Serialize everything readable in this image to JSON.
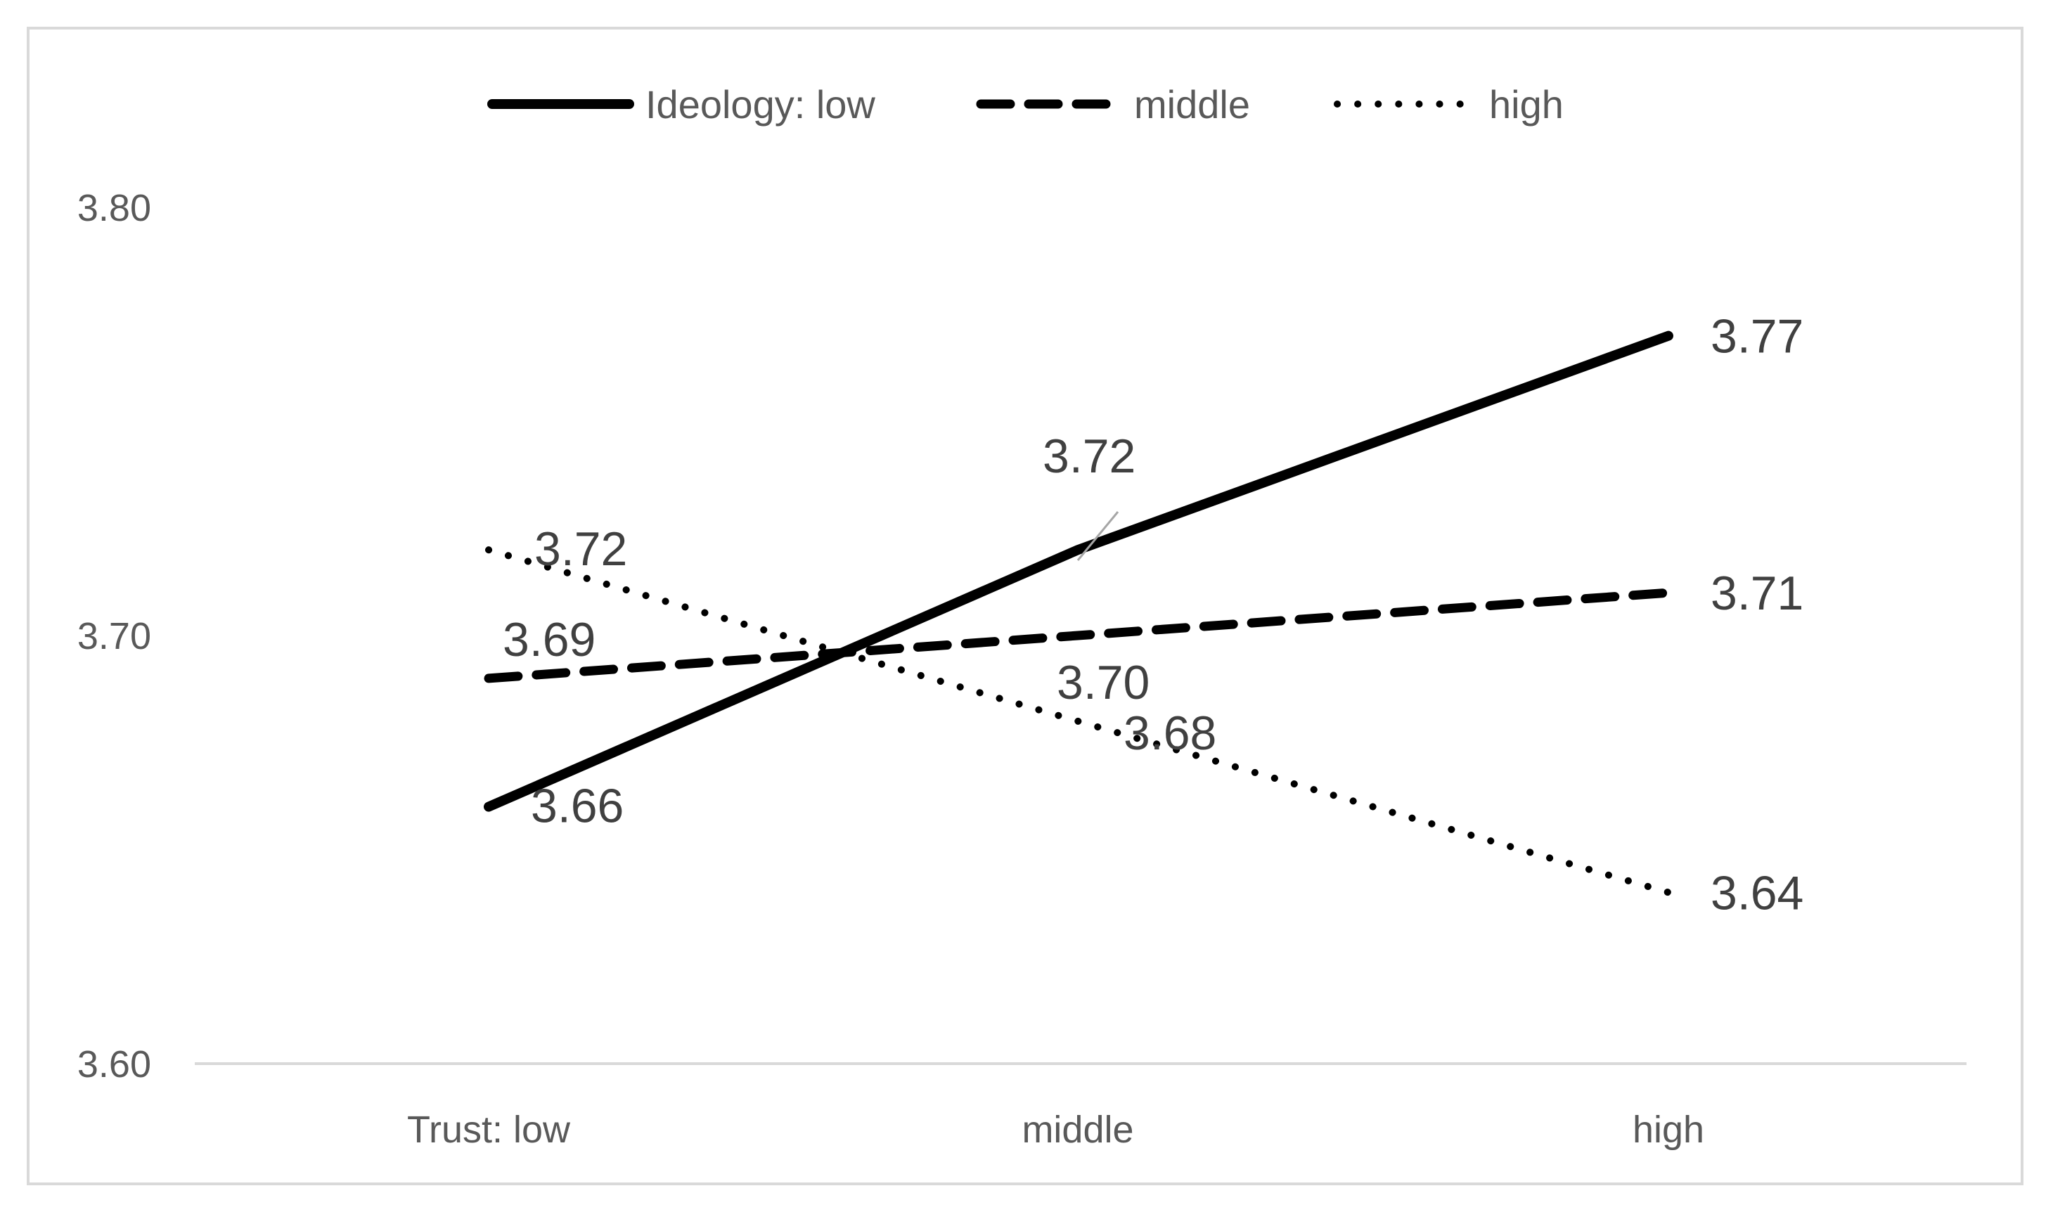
{
  "chart_data": {
    "type": "line",
    "categories": [
      "Trust: low",
      "middle",
      "high"
    ],
    "ylim": [
      3.6,
      3.8
    ],
    "yticks": [
      "3.60",
      "3.70",
      "3.80"
    ],
    "grid": false,
    "legend_position": "top",
    "series": [
      {
        "name": "Ideology: low",
        "style": "solid",
        "color": "#000000",
        "values": [
          3.66,
          3.72,
          3.77
        ],
        "labels": [
          "3.66",
          "3.72",
          "3.77"
        ]
      },
      {
        "name": "middle",
        "style": "dashed",
        "color": "#000000",
        "values": [
          3.69,
          3.7,
          3.71
        ],
        "labels": [
          "3.69",
          "3.70",
          "3.71"
        ]
      },
      {
        "name": "high",
        "style": "dotted",
        "color": "#000000",
        "values": [
          3.72,
          3.68,
          3.64
        ],
        "labels": [
          "3.72",
          "3.68",
          "3.64"
        ]
      }
    ]
  }
}
